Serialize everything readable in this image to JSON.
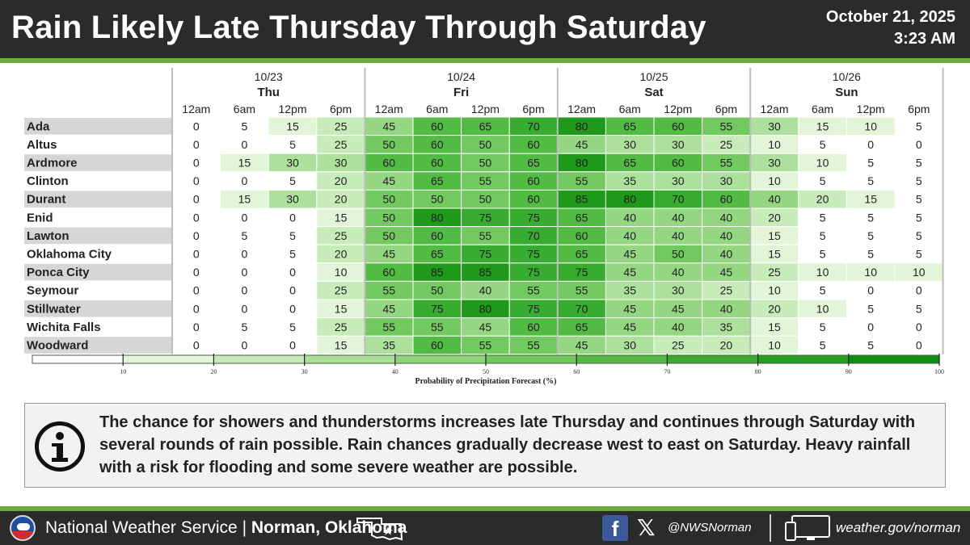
{
  "header": {
    "title": "Rain Likely Late Thursday Through Saturday",
    "date": "October 21, 2025",
    "time": "3:23 AM"
  },
  "chart_data": {
    "type": "heatmap",
    "days": [
      {
        "date": "10/23",
        "name": "Thu"
      },
      {
        "date": "10/24",
        "name": "Fri"
      },
      {
        "date": "10/25",
        "name": "Sat"
      },
      {
        "date": "10/26",
        "name": "Sun"
      }
    ],
    "times": [
      "12am",
      "6am",
      "12pm",
      "6pm"
    ],
    "locations": [
      "Ada",
      "Altus",
      "Ardmore",
      "Clinton",
      "Durant",
      "Enid",
      "Lawton",
      "Oklahoma City",
      "Ponca City",
      "Seymour",
      "Stillwater",
      "Wichita Falls",
      "Woodward"
    ],
    "values": [
      [
        0,
        5,
        15,
        25,
        45,
        60,
        65,
        70,
        80,
        65,
        60,
        55,
        30,
        15,
        10,
        5
      ],
      [
        0,
        0,
        5,
        25,
        50,
        60,
        50,
        60,
        45,
        30,
        30,
        25,
        10,
        5,
        0,
        0
      ],
      [
        0,
        15,
        30,
        30,
        60,
        60,
        50,
        65,
        80,
        65,
        60,
        55,
        30,
        10,
        5,
        5
      ],
      [
        0,
        0,
        5,
        20,
        45,
        65,
        55,
        60,
        55,
        35,
        30,
        30,
        10,
        5,
        5,
        5
      ],
      [
        0,
        15,
        30,
        20,
        50,
        50,
        50,
        60,
        85,
        80,
        70,
        60,
        40,
        20,
        15,
        5
      ],
      [
        0,
        0,
        0,
        15,
        50,
        80,
        75,
        75,
        65,
        40,
        40,
        40,
        20,
        5,
        5,
        5
      ],
      [
        0,
        5,
        5,
        25,
        50,
        60,
        55,
        70,
        60,
        40,
        40,
        40,
        15,
        5,
        5,
        5
      ],
      [
        0,
        0,
        5,
        20,
        45,
        65,
        75,
        75,
        65,
        45,
        50,
        40,
        15,
        5,
        5,
        5
      ],
      [
        0,
        0,
        0,
        10,
        60,
        85,
        85,
        75,
        75,
        45,
        40,
        45,
        25,
        10,
        10,
        10
      ],
      [
        0,
        0,
        0,
        25,
        55,
        50,
        40,
        55,
        55,
        35,
        30,
        25,
        10,
        5,
        0,
        0
      ],
      [
        0,
        0,
        0,
        15,
        45,
        75,
        80,
        75,
        70,
        45,
        45,
        40,
        20,
        10,
        5,
        5
      ],
      [
        0,
        5,
        5,
        25,
        55,
        55,
        45,
        60,
        65,
        45,
        40,
        35,
        15,
        5,
        0,
        0
      ],
      [
        0,
        0,
        0,
        15,
        35,
        60,
        55,
        55,
        45,
        30,
        25,
        20,
        10,
        5,
        5,
        0
      ]
    ],
    "legend": {
      "title": "Probability of Precipitation Forecast (%)",
      "ticks": [
        "10",
        "20",
        "30",
        "40",
        "50",
        "60",
        "70",
        "80",
        "90",
        "100"
      ],
      "range": [
        0,
        100
      ],
      "colors": [
        "#ffffff",
        "#e2f5d9",
        "#c6eab8",
        "#a9df96",
        "#8ed479",
        "#72c75d",
        "#55ba44",
        "#3cac30",
        "#259d1e",
        "#108e0f"
      ]
    }
  },
  "info": {
    "text": "The chance for showers and thunderstorms increases late Thursday and continues through Saturday with several rounds of rain possible. Rain chances gradually decrease west to east on Saturday. Heavy rainfall with a risk for flooding and some severe weather are possible."
  },
  "footer": {
    "agency": "National Weather Service",
    "separator": "|",
    "office": "Norman, Oklahoma",
    "handle": "@NWSNorman",
    "website": "weather.gov/norman"
  }
}
